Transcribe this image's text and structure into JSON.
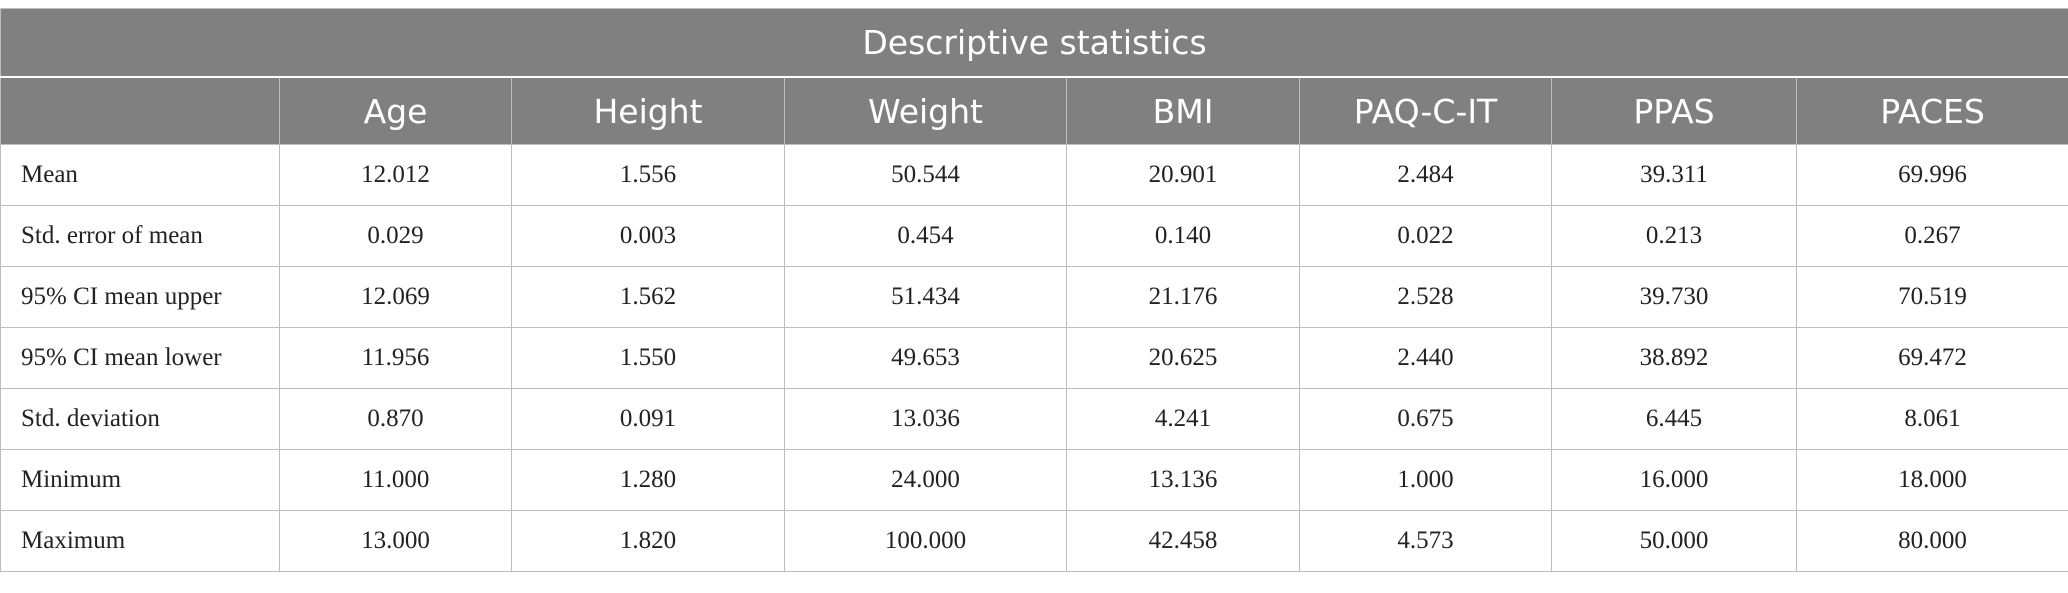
{
  "table": {
    "title": "Descriptive statistics",
    "columns": [
      "",
      "Age",
      "Height",
      "Weight",
      "BMI",
      "PAQ-C-IT",
      "PPAS",
      "PACES"
    ],
    "rows": [
      {
        "label": "Mean",
        "values": [
          "12.012",
          "1.556",
          "50.544",
          "20.901",
          "2.484",
          "39.311",
          "69.996"
        ]
      },
      {
        "label": "Std. error of mean",
        "values": [
          "0.029",
          "0.003",
          "0.454",
          "0.140",
          "0.022",
          "0.213",
          "0.267"
        ]
      },
      {
        "label": "95% CI mean upper",
        "values": [
          "12.069",
          "1.562",
          "51.434",
          "21.176",
          "2.528",
          "39.730",
          "70.519"
        ]
      },
      {
        "label": "95% CI mean lower",
        "values": [
          "11.956",
          "1.550",
          "49.653",
          "20.625",
          "2.440",
          "38.892",
          "69.472"
        ]
      },
      {
        "label": "Std. deviation",
        "values": [
          "0.870",
          "0.091",
          "13.036",
          "4.241",
          "0.675",
          "6.445",
          "8.061"
        ]
      },
      {
        "label": "Minimum",
        "values": [
          "11.000",
          "1.280",
          "24.000",
          "13.136",
          "1.000",
          "16.000",
          "18.000"
        ]
      },
      {
        "label": "Maximum",
        "values": [
          "13.000",
          "1.820",
          "100.000",
          "42.458",
          "4.573",
          "50.000",
          "80.000"
        ]
      }
    ]
  },
  "colors": {
    "header_bg": "#808080",
    "header_text": "#ffffff",
    "border": "#bdbdbd"
  }
}
